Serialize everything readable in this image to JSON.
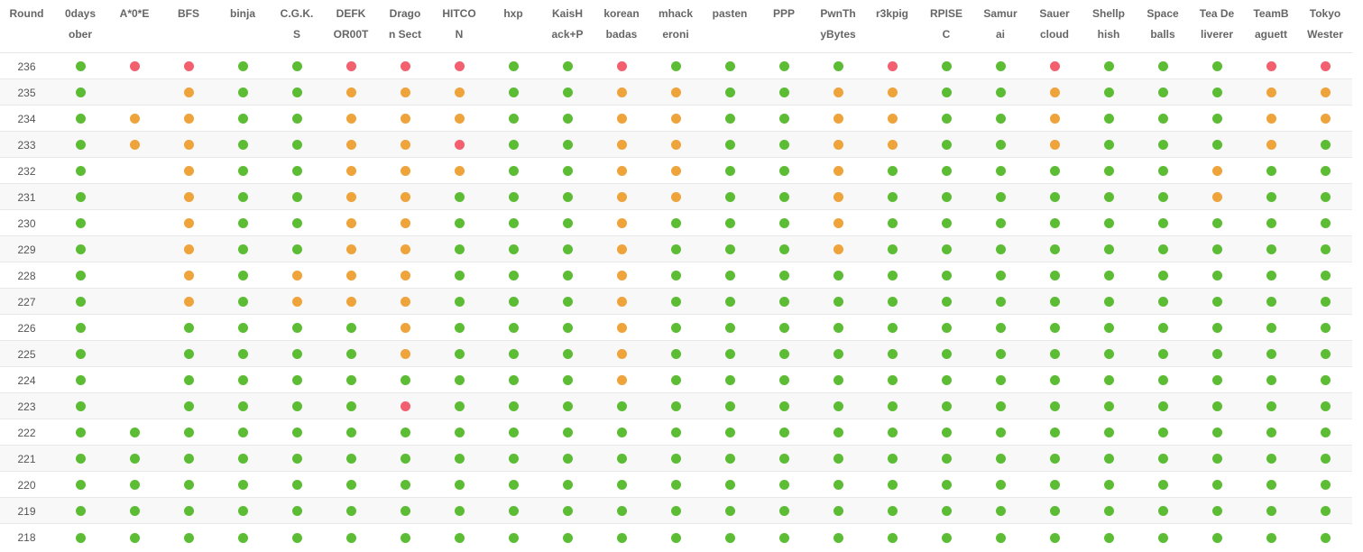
{
  "header": {
    "round_label": "Round",
    "teams": [
      [
        "0days",
        "ober"
      ],
      [
        "A*0*E"
      ],
      [
        "BFS"
      ],
      [
        "binja"
      ],
      [
        "C.G.K.",
        "S"
      ],
      [
        "DEFK",
        "OR00T"
      ],
      [
        "Drago",
        "n Sect"
      ],
      [
        "HITCO",
        "N"
      ],
      [
        "hxp"
      ],
      [
        "KaisH",
        "ack+P"
      ],
      [
        "korean",
        "badas"
      ],
      [
        "mhack",
        "eroni"
      ],
      [
        "pasten"
      ],
      [
        "PPP"
      ],
      [
        "PwnTh",
        "yBytes"
      ],
      [
        "r3kpig"
      ],
      [
        "RPISE",
        "C"
      ],
      [
        "Samur",
        "ai"
      ],
      [
        "Sauer",
        "cloud"
      ],
      [
        "Shellp",
        "hish"
      ],
      [
        "Space",
        "balls"
      ],
      [
        "Tea De",
        "liverer"
      ],
      [
        "TeamB",
        "aguett"
      ],
      [
        "Tokyo",
        "Wester"
      ]
    ]
  },
  "status_colors": {
    "ok": "#5cbd35",
    "warn": "#eea33b",
    "down": "#f25f6e"
  },
  "legend_codes": {
    "G": "ok",
    "O": "warn",
    "R": "down",
    "-": "none"
  },
  "rounds": [
    {
      "round": "236",
      "status": "GRRGGRRRGGRGGGGRGGRGGGRR"
    },
    {
      "round": "235",
      "status": "G-OGGOOOGGOOGGOOGGOGGGOO"
    },
    {
      "round": "234",
      "status": "GOOGGOOOGGOOGGOOGGOGGGOO"
    },
    {
      "round": "233",
      "status": "GOOGGOORGGOOGGOOGGOGGGOG"
    },
    {
      "round": "232",
      "status": "G-OGGOOOGGOOGGOGGGGGGOGG"
    },
    {
      "round": "231",
      "status": "G-OGGOOGGGOOGGOGGGGGGOGG"
    },
    {
      "round": "230",
      "status": "G-OGGOOGGGOGGGOGGGGGGGGG"
    },
    {
      "round": "229",
      "status": "G-OGGOOGGGOGGGOGGGGGGGGG"
    },
    {
      "round": "228",
      "status": "G-OGOOOGGGOGGGGGGGGGGGGG"
    },
    {
      "round": "227",
      "status": "G-OGOOOGGGOGGGGGGGGGGGGG"
    },
    {
      "round": "226",
      "status": "G-GGGGOGGGOGGGGGGGGGGGGG"
    },
    {
      "round": "225",
      "status": "G-GGGGOGGGOGGGGGGGGGGGGG"
    },
    {
      "round": "224",
      "status": "G-GGGGGGGGOGGGGGGGGGGGGG"
    },
    {
      "round": "223",
      "status": "G-GGGGRGGGGGGGGGGGGGGGGG"
    },
    {
      "round": "222",
      "status": "GGGGGGGGGGGGGGGGGGGGGGGG"
    },
    {
      "round": "221",
      "status": "GGGGGGGGGGGGGGGGGGGGGGGG"
    },
    {
      "round": "220",
      "status": "GGGGGGGGGGGGGGGGGGGGGGGG"
    },
    {
      "round": "219",
      "status": "GGGGGGGGGGGGGGGGGGGGGGGG"
    },
    {
      "round": "218",
      "status": "GGGGGGGGGGGGGGGGGGGGGGGG"
    }
  ]
}
